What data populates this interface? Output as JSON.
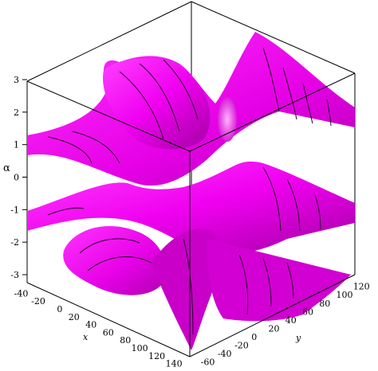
{
  "chart_data": {
    "type": "surface3d",
    "title": "",
    "surface_color": "#ff00ff",
    "surface_shade_color": "#a000a0",
    "contour_color": "#2a002a",
    "axes": {
      "x": {
        "label": "x",
        "range": [
          -45,
          145
        ],
        "ticks": [
          "-40",
          "-20",
          "0",
          "20",
          "40",
          "60",
          "80",
          "100",
          "120",
          "140"
        ]
      },
      "y": {
        "label": "y",
        "range": [
          -70,
          125
        ],
        "ticks": [
          "-60",
          "-40",
          "-20",
          "0",
          "20",
          "40",
          "60",
          "80",
          "100",
          "120"
        ]
      },
      "z": {
        "label": "α",
        "range": [
          -3.2,
          3.2
        ],
        "ticks": [
          "-3",
          "-2",
          "-1",
          "0",
          "1",
          "2",
          "3"
        ]
      }
    },
    "box": true
  }
}
